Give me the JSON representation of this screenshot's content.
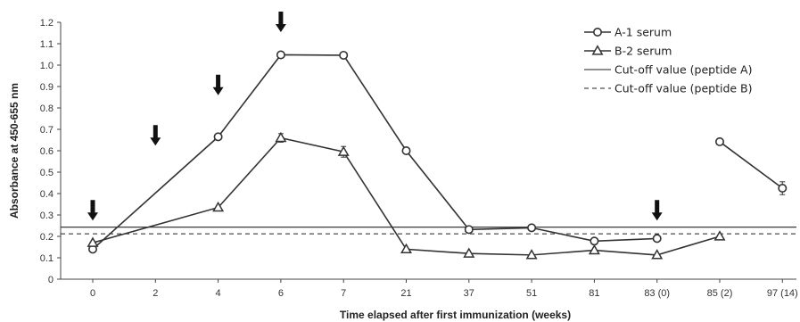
{
  "chart_data": {
    "type": "line",
    "title": "",
    "xlabel": "Time elapsed after first immunization (weeks)",
    "ylabel": "Absorbance at 450-655 nm",
    "ylim": [
      0,
      1.2
    ],
    "yticks": [
      "0",
      "0.1",
      "0.2",
      "0.3",
      "0.4",
      "0.5",
      "0.6",
      "0.7",
      "0.8",
      "0.9",
      "1.0",
      "1.1",
      "1.2"
    ],
    "categories": [
      "0",
      "2",
      "4",
      "6",
      "7",
      "21",
      "37",
      "51",
      "81",
      "83 (0)",
      "85 (2)",
      "97 (14)"
    ],
    "grid": false,
    "legend_position": "top-right",
    "series": [
      {
        "name": "A-1 serum",
        "marker": "circle",
        "values": [
          0.14,
          null,
          0.665,
          1.048,
          1.046,
          0.6,
          0.232,
          0.24,
          0.178,
          0.19,
          0.642,
          0.425
        ],
        "errors": [
          0,
          0,
          0,
          0.008,
          0,
          0,
          0,
          0,
          0,
          0,
          0,
          0.03
        ],
        "break_after": [
          "83 (0)"
        ]
      },
      {
        "name": "B-2 serum",
        "marker": "triangle",
        "values": [
          0.17,
          null,
          0.335,
          0.66,
          0.595,
          0.14,
          0.12,
          0.113,
          0.135,
          0.113,
          0.2,
          null
        ],
        "errors": [
          0,
          0,
          0,
          0.02,
          0.025,
          0,
          0,
          0,
          0,
          0,
          0,
          0
        ]
      }
    ],
    "reference_lines": [
      {
        "name": "Cut-off value (peptide A)",
        "y": 0.243,
        "style": "solid"
      },
      {
        "name": "Cut-off value (peptide B)",
        "y": 0.212,
        "style": "dashed"
      }
    ],
    "immunization_arrows": [
      "0",
      "2",
      "4",
      "6",
      "83 (0)"
    ]
  }
}
